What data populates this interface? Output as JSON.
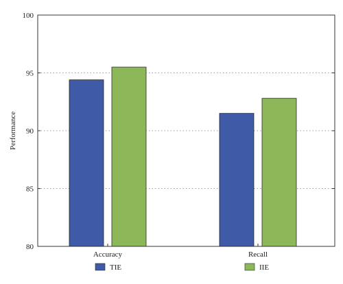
{
  "chart_data": {
    "type": "bar",
    "ylabel": "Performance",
    "xlabel": "",
    "ylim": [
      80,
      100
    ],
    "yticks": [
      80,
      85,
      90,
      95,
      100
    ],
    "grid": "horizontal dotted",
    "legend_position": "bottom",
    "categories": [
      "Accuracy",
      "Recall"
    ],
    "series": [
      {
        "name": "TIE",
        "color": "#3f5aa6",
        "values": [
          94.4,
          91.5
        ]
      },
      {
        "name": "IIE",
        "color": "#8db85a",
        "values": [
          95.5,
          92.8
        ]
      }
    ]
  }
}
